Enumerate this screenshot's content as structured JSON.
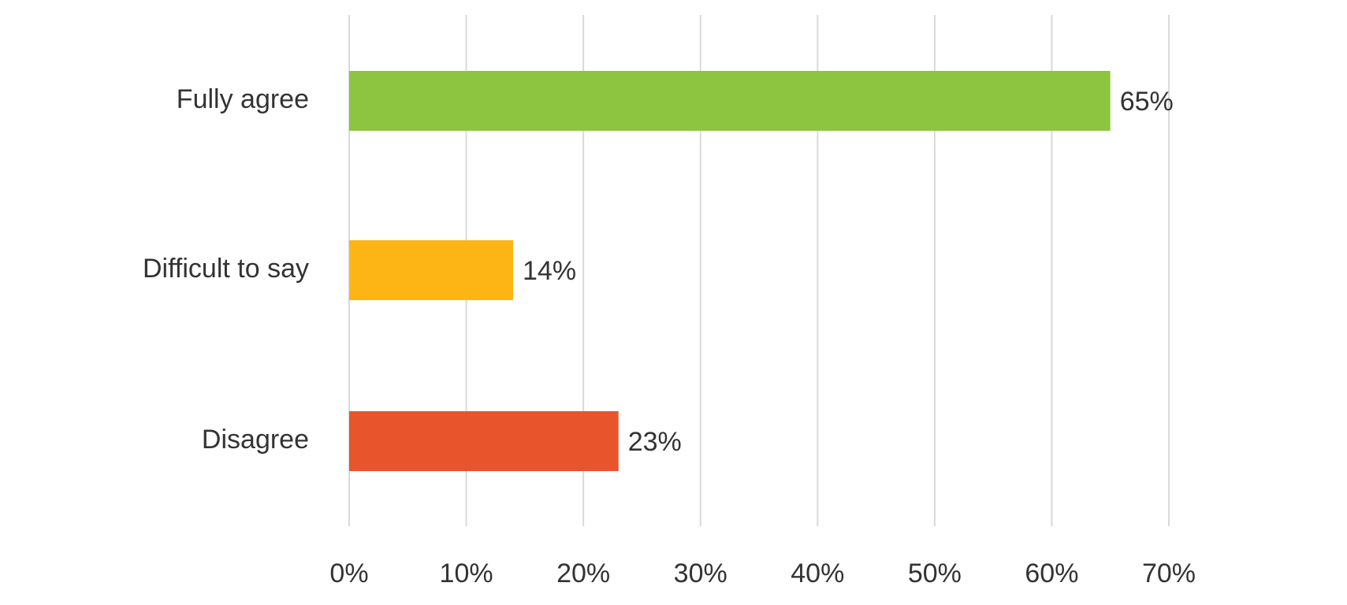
{
  "chart_data": {
    "type": "bar",
    "orientation": "horizontal",
    "categories": [
      "Fully agree",
      "Difficult to say",
      "Disagree"
    ],
    "values": [
      65,
      14,
      23
    ],
    "value_labels": [
      "65%",
      "14%",
      "23%"
    ],
    "colors": [
      "#8dc540",
      "#fdb515",
      "#e8542c"
    ],
    "xlim": [
      0,
      70
    ],
    "xticks": [
      {
        "value": 0,
        "label": "0%"
      },
      {
        "value": 10,
        "label": "10%"
      },
      {
        "value": 20,
        "label": "20%"
      },
      {
        "value": 30,
        "label": "30%"
      },
      {
        "value": 40,
        "label": "40%"
      },
      {
        "value": 50,
        "label": "50%"
      },
      {
        "value": 60,
        "label": "60%"
      },
      {
        "value": 70,
        "label": "70%"
      }
    ],
    "grid": true
  }
}
